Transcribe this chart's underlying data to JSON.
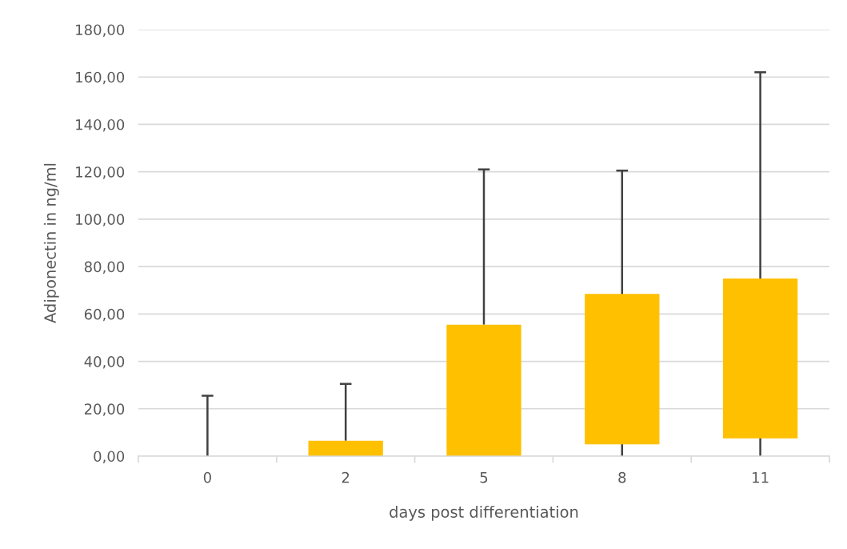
{
  "chart_data": {
    "type": "bar",
    "xlabel": "days post differentiation",
    "ylabel": "Adiponectin in ng/ml",
    "categories": [
      "0",
      "2",
      "5",
      "8",
      "11"
    ],
    "base": [
      null,
      0,
      0,
      5,
      7.5
    ],
    "values": [
      0,
      6.5,
      55.5,
      63.5,
      67.5
    ],
    "errors": [
      [
        0,
        25.5
      ],
      [
        6.5,
        30.5
      ],
      [
        55.5,
        121
      ],
      [
        0,
        120.5
      ],
      [
        0,
        162
      ]
    ],
    "color": "#ffc000",
    "ylim": [
      0,
      180
    ],
    "yticks": [
      {
        "value": 0,
        "label": "0,00"
      },
      {
        "value": 20,
        "label": "20,00"
      },
      {
        "value": 40,
        "label": "40,00"
      },
      {
        "value": 60,
        "label": "60,00"
      },
      {
        "value": 80,
        "label": "80,00"
      },
      {
        "value": 100,
        "label": "100,00"
      },
      {
        "value": 120,
        "label": "120,00"
      },
      {
        "value": 140,
        "label": "140,00"
      },
      {
        "value": 160,
        "label": "160,00"
      },
      {
        "value": 180,
        "label": "180,00"
      }
    ],
    "grid": "y",
    "legend": false
  }
}
